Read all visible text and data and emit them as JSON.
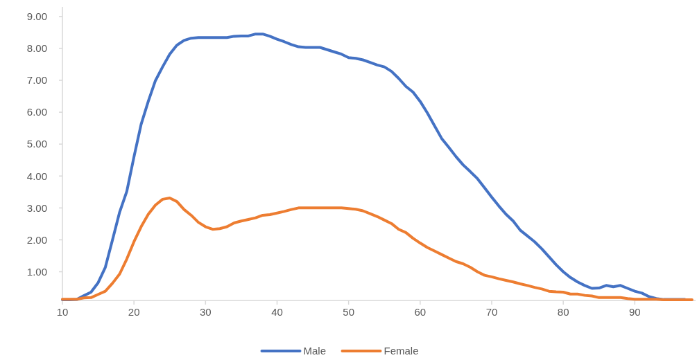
{
  "chart_data": {
    "type": "line",
    "xlim": [
      10,
      98.5
    ],
    "xticks": [
      10,
      20,
      30,
      40,
      50,
      60,
      70,
      80,
      90
    ],
    "ylim": [
      0.1,
      9.3
    ],
    "yticks": [
      {
        "value": 1,
        "label": "1.00"
      },
      {
        "value": 2,
        "label": "2.00"
      },
      {
        "value": 3,
        "label": "3.00"
      },
      {
        "value": 4,
        "label": "4.00"
      },
      {
        "value": 5,
        "label": "5.00"
      },
      {
        "value": 6,
        "label": "6.00"
      },
      {
        "value": 7,
        "label": "7.00"
      },
      {
        "value": 8,
        "label": "8.00"
      },
      {
        "value": 9,
        "label": "9.00"
      }
    ],
    "x": [
      10,
      11,
      12,
      13,
      14,
      15,
      16,
      17,
      18,
      19,
      20,
      21,
      22,
      23,
      24,
      25,
      26,
      27,
      28,
      29,
      30,
      31,
      32,
      33,
      34,
      35,
      36,
      37,
      38,
      39,
      40,
      41,
      42,
      43,
      44,
      45,
      46,
      47,
      48,
      49,
      50,
      51,
      52,
      53,
      54,
      55,
      56,
      57,
      58,
      59,
      60,
      61,
      62,
      63,
      64,
      65,
      66,
      67,
      68,
      69,
      70,
      71,
      72,
      73,
      74,
      75,
      76,
      77,
      78,
      79,
      80,
      81,
      82,
      83,
      84,
      85,
      86,
      87,
      88,
      89,
      90,
      91,
      92,
      93,
      94,
      95,
      96,
      97,
      98
    ],
    "series": [
      {
        "name": "Male",
        "color": "#4472c4",
        "values": [
          0.12,
          0.12,
          0.13,
          0.25,
          0.36,
          0.66,
          1.14,
          2.0,
          2.87,
          3.52,
          4.6,
          5.62,
          6.34,
          6.99,
          7.42,
          7.82,
          8.1,
          8.25,
          8.32,
          8.34,
          8.34,
          8.34,
          8.34,
          8.34,
          8.38,
          8.39,
          8.39,
          8.45,
          8.45,
          8.38,
          8.29,
          8.21,
          8.12,
          8.05,
          8.03,
          8.03,
          8.03,
          7.96,
          7.89,
          7.82,
          7.71,
          7.69,
          7.64,
          7.56,
          7.48,
          7.42,
          7.28,
          7.06,
          6.81,
          6.63,
          6.34,
          5.98,
          5.58,
          5.18,
          4.9,
          4.61,
          4.35,
          4.14,
          3.92,
          3.63,
          3.34,
          3.06,
          2.8,
          2.59,
          2.3,
          2.12,
          1.94,
          1.72,
          1.47,
          1.22,
          1.0,
          0.82,
          0.68,
          0.57,
          0.48,
          0.49,
          0.57,
          0.53,
          0.57,
          0.48,
          0.39,
          0.33,
          0.22,
          0.16,
          0.13,
          0.13,
          0.13,
          0.13,
          null
        ]
      },
      {
        "name": "Female",
        "color": "#ed7d31",
        "values": [
          0.14,
          0.14,
          0.14,
          0.18,
          0.19,
          0.29,
          0.39,
          0.64,
          0.93,
          1.4,
          1.94,
          2.41,
          2.8,
          3.09,
          3.27,
          3.31,
          3.2,
          2.95,
          2.77,
          2.55,
          2.41,
          2.33,
          2.35,
          2.41,
          2.53,
          2.59,
          2.64,
          2.69,
          2.77,
          2.79,
          2.84,
          2.89,
          2.95,
          3.0,
          3.0,
          3.0,
          3.0,
          3.0,
          3.0,
          3.0,
          2.98,
          2.96,
          2.91,
          2.82,
          2.73,
          2.62,
          2.51,
          2.33,
          2.23,
          2.05,
          1.9,
          1.76,
          1.65,
          1.54,
          1.43,
          1.32,
          1.25,
          1.14,
          1.0,
          0.89,
          0.84,
          0.78,
          0.73,
          0.68,
          0.62,
          0.57,
          0.51,
          0.46,
          0.39,
          0.37,
          0.36,
          0.3,
          0.3,
          0.26,
          0.24,
          0.19,
          0.19,
          0.19,
          0.19,
          0.16,
          0.14,
          0.14,
          0.14,
          0.14,
          0.12,
          0.12,
          0.12,
          0.12,
          0.12
        ]
      }
    ],
    "legend": "bottom",
    "grid": false
  }
}
